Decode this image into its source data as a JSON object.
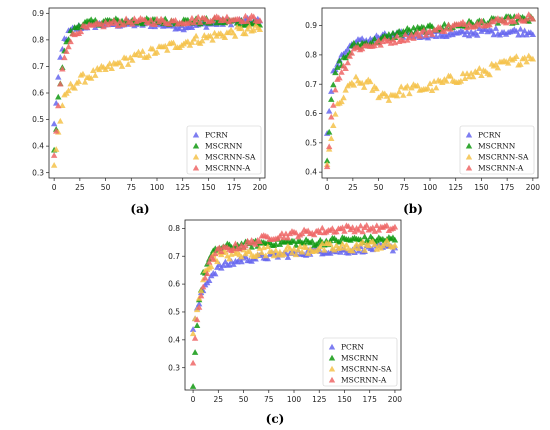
{
  "chart_data": [
    {
      "panel": "(a)",
      "type": "scatter",
      "marker": "triangle",
      "xlim": [
        -5,
        205
      ],
      "ylim": [
        0.28,
        0.92
      ],
      "xticks": [
        0,
        25,
        50,
        75,
        100,
        125,
        150,
        175,
        200
      ],
      "yticks": [
        0.3,
        0.4,
        0.5,
        0.6,
        0.7,
        0.8,
        0.9
      ],
      "ytick_labels": [
        "0.3",
        "0.4",
        "0.5",
        "0.6",
        "0.7",
        "0.8",
        "0.9"
      ],
      "legend": "bottom-right",
      "series": [
        {
          "name": "PCRN",
          "color": "#6666ee",
          "points": [
            [
              0,
              0.48
            ],
            [
              5,
              0.7
            ],
            [
              10,
              0.8
            ],
            [
              15,
              0.83
            ],
            [
              25,
              0.85
            ],
            [
              50,
              0.86
            ],
            [
              75,
              0.86
            ],
            [
              100,
              0.86
            ],
            [
              125,
              0.85
            ],
            [
              150,
              0.86
            ],
            [
              175,
              0.87
            ],
            [
              200,
              0.87
            ]
          ]
        },
        {
          "name": "MSCRNN",
          "color": "#119911",
          "points": [
            [
              0,
              0.38
            ],
            [
              5,
              0.62
            ],
            [
              10,
              0.76
            ],
            [
              15,
              0.82
            ],
            [
              25,
              0.86
            ],
            [
              50,
              0.87
            ],
            [
              75,
              0.87
            ],
            [
              100,
              0.87
            ],
            [
              125,
              0.87
            ],
            [
              150,
              0.87
            ],
            [
              175,
              0.87
            ],
            [
              200,
              0.86
            ]
          ]
        },
        {
          "name": "MSCRNN-SA",
          "color": "#f5c24a",
          "points": [
            [
              0,
              0.33
            ],
            [
              5,
              0.48
            ],
            [
              10,
              0.58
            ],
            [
              15,
              0.62
            ],
            [
              25,
              0.65
            ],
            [
              50,
              0.69
            ],
            [
              75,
              0.73
            ],
            [
              100,
              0.76
            ],
            [
              125,
              0.79
            ],
            [
              150,
              0.81
            ],
            [
              175,
              0.83
            ],
            [
              200,
              0.84
            ]
          ]
        },
        {
          "name": "MSCRNN-A",
          "color": "#ee6666",
          "points": [
            [
              0,
              0.36
            ],
            [
              5,
              0.6
            ],
            [
              10,
              0.74
            ],
            [
              15,
              0.8
            ],
            [
              25,
              0.84
            ],
            [
              50,
              0.86
            ],
            [
              75,
              0.87
            ],
            [
              100,
              0.87
            ],
            [
              125,
              0.87
            ],
            [
              150,
              0.88
            ],
            [
              175,
              0.88
            ],
            [
              200,
              0.88
            ]
          ]
        }
      ]
    },
    {
      "panel": "(b)",
      "type": "scatter",
      "marker": "triangle",
      "xlim": [
        -5,
        205
      ],
      "ylim": [
        0.38,
        0.96
      ],
      "xticks": [
        0,
        25,
        50,
        75,
        100,
        125,
        150,
        175,
        200
      ],
      "yticks": [
        0.4,
        0.5,
        0.6,
        0.7,
        0.8,
        0.9
      ],
      "ytick_labels": [
        "0.4",
        "0.5",
        "0.6",
        "0.7",
        "0.8",
        "0.9"
      ],
      "legend": "bottom-right",
      "series": [
        {
          "name": "PCRN",
          "color": "#6666ee",
          "points": [
            [
              0,
              0.52
            ],
            [
              5,
              0.72
            ],
            [
              10,
              0.78
            ],
            [
              20,
              0.82
            ],
            [
              25,
              0.84
            ],
            [
              50,
              0.86
            ],
            [
              75,
              0.87
            ],
            [
              100,
              0.87
            ],
            [
              125,
              0.87
            ],
            [
              150,
              0.88
            ],
            [
              175,
              0.88
            ],
            [
              200,
              0.88
            ]
          ]
        },
        {
          "name": "MSCRNN",
          "color": "#119911",
          "points": [
            [
              0,
              0.45
            ],
            [
              5,
              0.68
            ],
            [
              10,
              0.76
            ],
            [
              20,
              0.8
            ],
            [
              25,
              0.83
            ],
            [
              50,
              0.85
            ],
            [
              75,
              0.88
            ],
            [
              100,
              0.89
            ],
            [
              125,
              0.9
            ],
            [
              150,
              0.91
            ],
            [
              175,
              0.92
            ],
            [
              200,
              0.92
            ]
          ]
        },
        {
          "name": "MSCRNN-SA",
          "color": "#f5c24a",
          "points": [
            [
              0,
              0.42
            ],
            [
              5,
              0.55
            ],
            [
              10,
              0.62
            ],
            [
              20,
              0.68
            ],
            [
              25,
              0.71
            ],
            [
              40,
              0.7
            ],
            [
              50,
              0.67
            ],
            [
              60,
              0.66
            ],
            [
              75,
              0.68
            ],
            [
              100,
              0.69
            ],
            [
              125,
              0.72
            ],
            [
              150,
              0.74
            ],
            [
              175,
              0.77
            ],
            [
              200,
              0.8
            ]
          ]
        },
        {
          "name": "MSCRNN-A",
          "color": "#ee6666",
          "points": [
            [
              0,
              0.41
            ],
            [
              5,
              0.62
            ],
            [
              10,
              0.72
            ],
            [
              20,
              0.78
            ],
            [
              25,
              0.82
            ],
            [
              50,
              0.84
            ],
            [
              75,
              0.86
            ],
            [
              100,
              0.88
            ],
            [
              125,
              0.9
            ],
            [
              150,
              0.91
            ],
            [
              175,
              0.92
            ],
            [
              200,
              0.93
            ]
          ]
        }
      ]
    },
    {
      "panel": "(c)",
      "type": "scatter",
      "marker": "triangle",
      "xlim": [
        -8,
        206
      ],
      "ylim": [
        0.22,
        0.83
      ],
      "xticks": [
        0,
        25,
        50,
        75,
        100,
        125,
        150,
        175,
        200
      ],
      "yticks": [
        0.3,
        0.4,
        0.5,
        0.6,
        0.7,
        0.8
      ],
      "ytick_labels": [
        "0.3",
        "0.4",
        "0.5",
        "0.6",
        "0.7",
        "0.8"
      ],
      "legend": "bottom-right",
      "series": [
        {
          "name": "PCRN",
          "color": "#6666ee",
          "points": [
            [
              0,
              0.44
            ],
            [
              5,
              0.52
            ],
            [
              10,
              0.58
            ],
            [
              15,
              0.62
            ],
            [
              20,
              0.64
            ],
            [
              25,
              0.66
            ],
            [
              50,
              0.69
            ],
            [
              75,
              0.7
            ],
            [
              100,
              0.71
            ],
            [
              125,
              0.72
            ],
            [
              150,
              0.72
            ],
            [
              175,
              0.73
            ],
            [
              200,
              0.73
            ]
          ]
        },
        {
          "name": "MSCRNN",
          "color": "#119911",
          "points": [
            [
              0,
              0.24
            ],
            [
              5,
              0.52
            ],
            [
              10,
              0.63
            ],
            [
              15,
              0.68
            ],
            [
              20,
              0.71
            ],
            [
              25,
              0.73
            ],
            [
              50,
              0.74
            ],
            [
              75,
              0.75
            ],
            [
              100,
              0.75
            ],
            [
              125,
              0.75
            ],
            [
              150,
              0.76
            ],
            [
              175,
              0.76
            ],
            [
              200,
              0.76
            ]
          ]
        },
        {
          "name": "MSCRNN-SA",
          "color": "#f5c24a",
          "points": [
            [
              0,
              0.42
            ],
            [
              5,
              0.54
            ],
            [
              10,
              0.62
            ],
            [
              15,
              0.66
            ],
            [
              20,
              0.69
            ],
            [
              25,
              0.7
            ],
            [
              50,
              0.71
            ],
            [
              75,
              0.72
            ],
            [
              100,
              0.72
            ],
            [
              125,
              0.73
            ],
            [
              150,
              0.73
            ],
            [
              175,
              0.74
            ],
            [
              200,
              0.74
            ]
          ]
        },
        {
          "name": "MSCRNN-A",
          "color": "#ee6666",
          "points": [
            [
              0,
              0.32
            ],
            [
              5,
              0.5
            ],
            [
              10,
              0.6
            ],
            [
              15,
              0.66
            ],
            [
              20,
              0.7
            ],
            [
              25,
              0.72
            ],
            [
              50,
              0.74
            ],
            [
              75,
              0.77
            ],
            [
              100,
              0.78
            ],
            [
              125,
              0.79
            ],
            [
              150,
              0.8
            ],
            [
              175,
              0.8
            ],
            [
              200,
              0.8
            ]
          ]
        }
      ]
    }
  ]
}
